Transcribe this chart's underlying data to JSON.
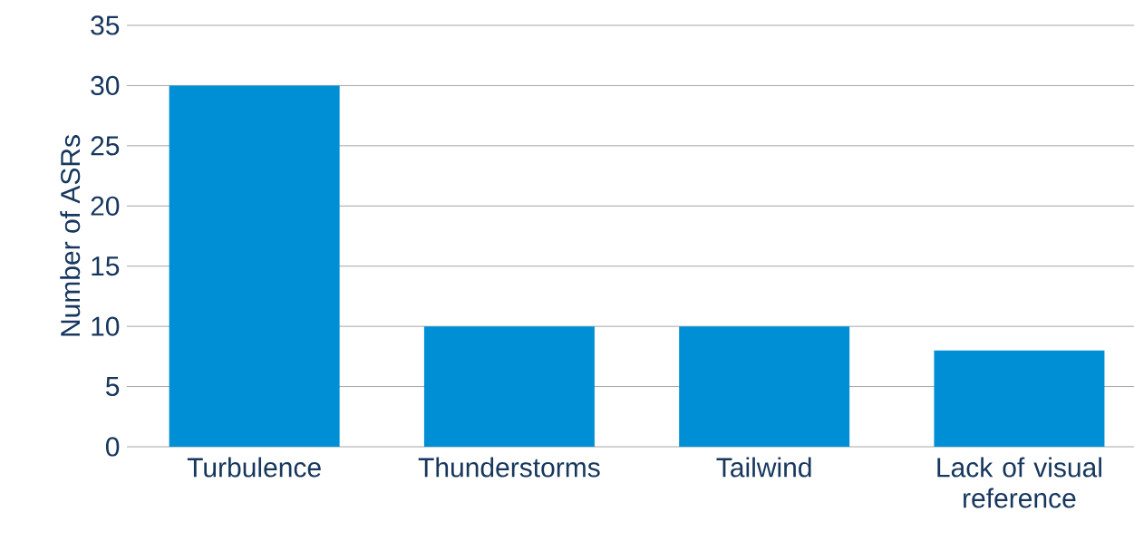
{
  "chart_data": {
    "type": "bar",
    "ylabel": "Number of ASRs",
    "categories": [
      "Turbulence",
      "Thunderstorms",
      "Tailwind",
      "Lack of visual reference"
    ],
    "values": [
      30,
      10,
      10,
      8
    ],
    "color": "#008fd5",
    "ylim": [
      0,
      35
    ],
    "yticks": [
      0,
      5,
      10,
      15,
      20,
      25,
      30,
      35
    ],
    "grid": "y"
  }
}
